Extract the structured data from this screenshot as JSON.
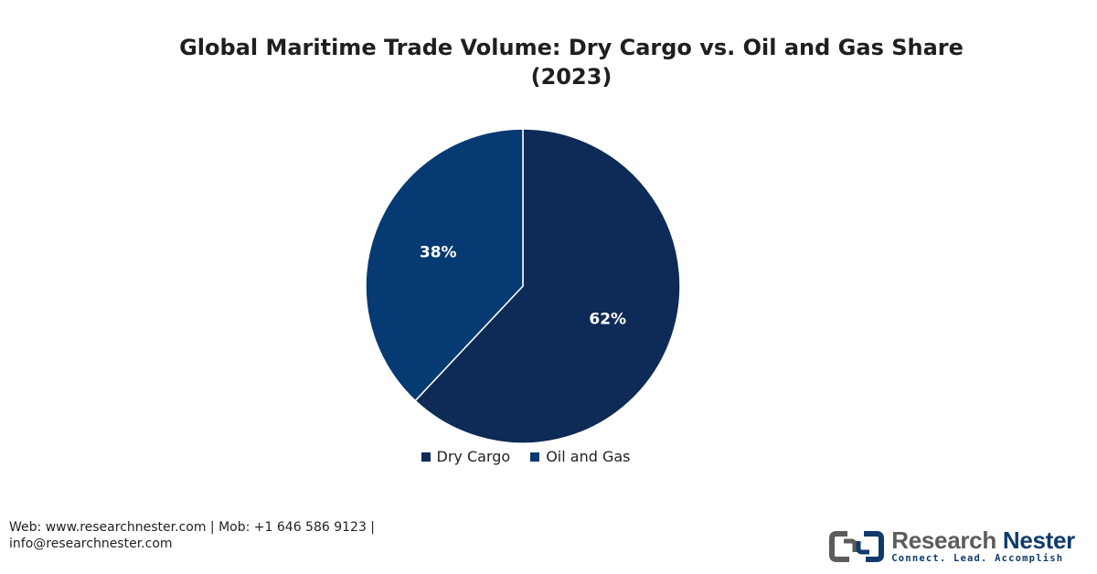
{
  "chart_data": {
    "type": "pie",
    "title_lines": [
      "Global Maritime Trade Volume: Dry Cargo vs. Oil and Gas Share",
      "(2023)"
    ],
    "slices": [
      {
        "label": "Dry Cargo",
        "value": 62,
        "display": "62%",
        "color": "#0e2a57"
      },
      {
        "label": "Oil and Gas",
        "value": 38,
        "display": "38%",
        "color": "#063a72"
      }
    ],
    "legend_position": "bottom-center"
  },
  "footer": {
    "contact_line1": "Web: www.researchnester.com | Mob: +1 646 586 9123 |",
    "contact_line2": "info@researchnester.com"
  },
  "brand": {
    "name_part1": "Research ",
    "name_part2": "Nester",
    "tagline": "Connect. Lead. Accomplish",
    "accent_color": "#0f3b6b",
    "gray_color": "#5c5c5c"
  }
}
